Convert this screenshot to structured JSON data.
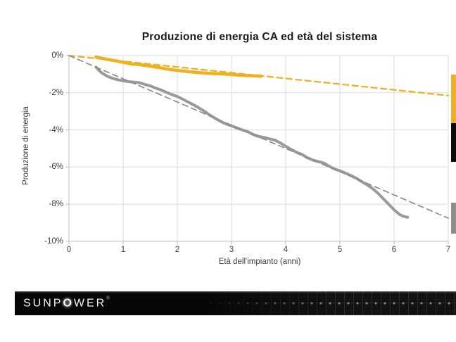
{
  "chart_data": {
    "type": "line",
    "title": "Produzione di energia CA ed età del sistema",
    "xlabel": "Età dell'impianto (anni)",
    "ylabel": "Produzione di energia",
    "xlim": [
      0,
      7
    ],
    "ylim": [
      -10,
      0
    ],
    "grid": true,
    "x_ticks": [
      "0",
      "1",
      "2",
      "3",
      "4",
      "5",
      "6",
      "7"
    ],
    "x_tick_values": [
      0,
      1,
      2,
      3,
      4,
      5,
      6,
      7
    ],
    "y_ticks": [
      "0%",
      "-2%",
      "-4%",
      "-6%",
      "-8%",
      "-10%"
    ],
    "y_tick_values": [
      0,
      -2,
      -4,
      -6,
      -8,
      -10
    ],
    "colors": {
      "yellow": "#EFB120",
      "gray_line": "#9A9A9A",
      "gray_trend": "#8C8C8C",
      "black": "#0b0b0b",
      "gridline": "#DBDBDB",
      "axis": "#BFBFBF"
    },
    "series": [
      {
        "name": "sunpower-actual",
        "style": "solid",
        "color": "#EFB120",
        "stroke_width": 4.5,
        "points": [
          [
            0.5,
            -0.08
          ],
          [
            0.6,
            -0.14
          ],
          [
            0.7,
            -0.2
          ],
          [
            0.8,
            -0.25
          ],
          [
            0.9,
            -0.3
          ],
          [
            1.0,
            -0.36
          ],
          [
            1.1,
            -0.42
          ],
          [
            1.2,
            -0.46
          ],
          [
            1.3,
            -0.48
          ],
          [
            1.4,
            -0.53
          ],
          [
            1.5,
            -0.57
          ],
          [
            1.6,
            -0.62
          ],
          [
            1.7,
            -0.66
          ],
          [
            1.8,
            -0.72
          ],
          [
            1.9,
            -0.76
          ],
          [
            2.0,
            -0.8
          ],
          [
            2.1,
            -0.83
          ],
          [
            2.2,
            -0.86
          ],
          [
            2.3,
            -0.89
          ],
          [
            2.4,
            -0.92
          ],
          [
            2.5,
            -0.94
          ],
          [
            2.6,
            -0.96
          ],
          [
            2.7,
            -0.97
          ],
          [
            2.8,
            -0.98
          ],
          [
            2.9,
            -1.0
          ],
          [
            3.0,
            -1.02
          ],
          [
            3.1,
            -1.04
          ],
          [
            3.2,
            -1.06
          ],
          [
            3.3,
            -1.08
          ],
          [
            3.4,
            -1.09
          ],
          [
            3.55,
            -1.11
          ]
        ]
      },
      {
        "name": "sunpower-trend",
        "style": "dashed",
        "color": "#EFB120",
        "stroke_width": 2.3,
        "points": [
          [
            0,
            0
          ],
          [
            7,
            -2.15
          ]
        ]
      },
      {
        "name": "conventional-actual",
        "style": "solid",
        "color": "#9A9A9A",
        "stroke_width": 4,
        "points": [
          [
            0.5,
            -0.62
          ],
          [
            0.55,
            -0.78
          ],
          [
            0.6,
            -0.92
          ],
          [
            0.7,
            -1.1
          ],
          [
            0.8,
            -1.22
          ],
          [
            0.9,
            -1.3
          ],
          [
            1.0,
            -1.36
          ],
          [
            1.1,
            -1.4
          ],
          [
            1.2,
            -1.43
          ],
          [
            1.3,
            -1.46
          ],
          [
            1.4,
            -1.55
          ],
          [
            1.5,
            -1.63
          ],
          [
            1.6,
            -1.75
          ],
          [
            1.7,
            -1.85
          ],
          [
            1.8,
            -1.98
          ],
          [
            1.9,
            -2.1
          ],
          [
            2.0,
            -2.2
          ],
          [
            2.1,
            -2.35
          ],
          [
            2.2,
            -2.5
          ],
          [
            2.3,
            -2.65
          ],
          [
            2.4,
            -2.82
          ],
          [
            2.5,
            -3.0
          ],
          [
            2.6,
            -3.2
          ],
          [
            2.7,
            -3.38
          ],
          [
            2.8,
            -3.55
          ],
          [
            2.9,
            -3.68
          ],
          [
            3.0,
            -3.78
          ],
          [
            3.1,
            -3.9
          ],
          [
            3.2,
            -4.0
          ],
          [
            3.3,
            -4.1
          ],
          [
            3.4,
            -4.25
          ],
          [
            3.5,
            -4.35
          ],
          [
            3.6,
            -4.4
          ],
          [
            3.7,
            -4.48
          ],
          [
            3.8,
            -4.55
          ],
          [
            3.9,
            -4.7
          ],
          [
            4.0,
            -4.88
          ],
          [
            4.1,
            -5.05
          ],
          [
            4.2,
            -5.2
          ],
          [
            4.3,
            -5.32
          ],
          [
            4.4,
            -5.5
          ],
          [
            4.5,
            -5.62
          ],
          [
            4.6,
            -5.7
          ],
          [
            4.7,
            -5.78
          ],
          [
            4.8,
            -5.95
          ],
          [
            4.9,
            -6.1
          ],
          [
            5.0,
            -6.2
          ],
          [
            5.1,
            -6.32
          ],
          [
            5.2,
            -6.45
          ],
          [
            5.3,
            -6.6
          ],
          [
            5.4,
            -6.78
          ],
          [
            5.5,
            -6.95
          ],
          [
            5.6,
            -7.15
          ],
          [
            5.7,
            -7.4
          ],
          [
            5.8,
            -7.7
          ],
          [
            5.9,
            -8.0
          ],
          [
            6.0,
            -8.3
          ],
          [
            6.1,
            -8.55
          ],
          [
            6.18,
            -8.66
          ],
          [
            6.25,
            -8.7
          ]
        ]
      },
      {
        "name": "conventional-trend",
        "style": "dashed",
        "color": "#8C8C8C",
        "stroke_width": 1.7,
        "points": [
          [
            0,
            0
          ],
          [
            7,
            -8.75
          ]
        ]
      }
    ],
    "legend_swatches": [
      {
        "name": "swatch-yellow",
        "color": "#F2B01E"
      },
      {
        "name": "swatch-black",
        "color": "#0b0b0b"
      },
      {
        "name": "swatch-gray",
        "color": "#8E8E8E"
      }
    ]
  },
  "footer": {
    "logo_part1": "SUNP",
    "logo_o": "O",
    "logo_part2": "WER",
    "logo_reg": "®"
  }
}
